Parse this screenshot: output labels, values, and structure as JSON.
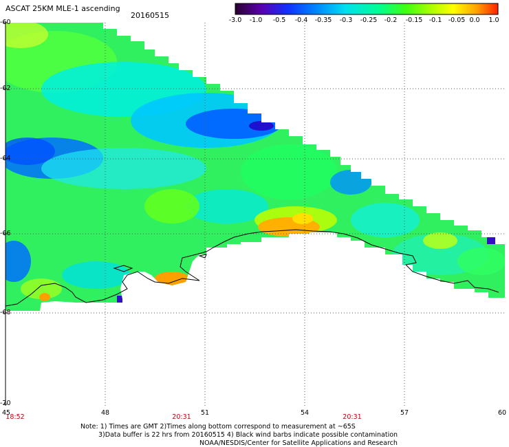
{
  "header": {
    "title": "ASCAT 25KM MLE-1 ascending",
    "date": "20160515"
  },
  "colorbar": {
    "labels": [
      "-3.0",
      "-1.0",
      "-0.5",
      "-0.4",
      "-0.35",
      "-0.3",
      "-0.25",
      "-0.2",
      "-0.15",
      "-0.1",
      "-0.05",
      "0.0",
      "1.0"
    ],
    "colors": [
      "#2a0030",
      "#5a00b0",
      "#1030ff",
      "#00a0ff",
      "#00e0e8",
      "#00ff80",
      "#40ff00",
      "#c0ff00",
      "#ffff00",
      "#ffa000",
      "#ff2000"
    ]
  },
  "axes": {
    "latitudes": [
      "-60",
      "-62",
      "-64",
      "-66",
      "-68",
      "-70"
    ],
    "longitudes": [
      "45",
      "48",
      "51",
      "54",
      "57",
      "60"
    ],
    "times": [
      "18:52",
      "20:31",
      "20:31"
    ],
    "time_color": "#c0000a"
  },
  "notes": {
    "line1": "Note: 1) Times are GMT 2)Times along bottom correspond to measurement at ~65S",
    "line2": "3)Data buffer is 22 hrs from 20160515 4) Black wind barbs indicate possible contamination",
    "line3": "NOAA/NESDIS/Center for Satellite Applications and Research"
  }
}
